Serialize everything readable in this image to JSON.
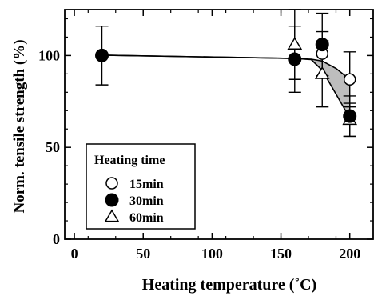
{
  "chart_data": {
    "type": "scatter",
    "xlabel": "Heating temperature (˚C)",
    "ylabel": "Norm. tensile strength (%)",
    "xlim": [
      -7,
      217
    ],
    "ylim": [
      0,
      125
    ],
    "xticks": [
      0,
      50,
      100,
      150,
      200
    ],
    "yticks": [
      0,
      50,
      100
    ],
    "grid": false,
    "legend": {
      "title": "Heating time",
      "placement": "bottom-left"
    },
    "series": [
      {
        "name": "15min",
        "marker": "open-circle",
        "points": [
          {
            "x": 180,
            "y": 101,
            "err": 12
          },
          {
            "x": 200,
            "y": 87,
            "err": 15
          }
        ]
      },
      {
        "name": "30min",
        "marker": "filled-circle",
        "points": [
          {
            "x": 20,
            "y": 100,
            "err": 16
          },
          {
            "x": 160,
            "y": 98,
            "err": 18
          },
          {
            "x": 180,
            "y": 106,
            "err": 17
          },
          {
            "x": 200,
            "y": 67,
            "err": 11
          }
        ]
      },
      {
        "name": "60min",
        "marker": "open-triangle",
        "points": [
          {
            "x": 160,
            "y": 106,
            "err": 19
          },
          {
            "x": 180,
            "y": 90,
            "err": 18
          },
          {
            "x": 200,
            "y": 65,
            "err": 9
          }
        ]
      }
    ],
    "trend_band": {
      "upper": [
        [
          20,
          100.2
        ],
        [
          160,
          98.4
        ],
        [
          172,
          98
        ],
        [
          180,
          97
        ],
        [
          190,
          93
        ],
        [
          200,
          87
        ]
      ],
      "lower": [
        [
          20,
          100.2
        ],
        [
          160,
          98.4
        ],
        [
          172,
          97.8
        ],
        [
          180,
          92
        ],
        [
          190,
          79
        ],
        [
          200,
          66
        ]
      ]
    }
  }
}
